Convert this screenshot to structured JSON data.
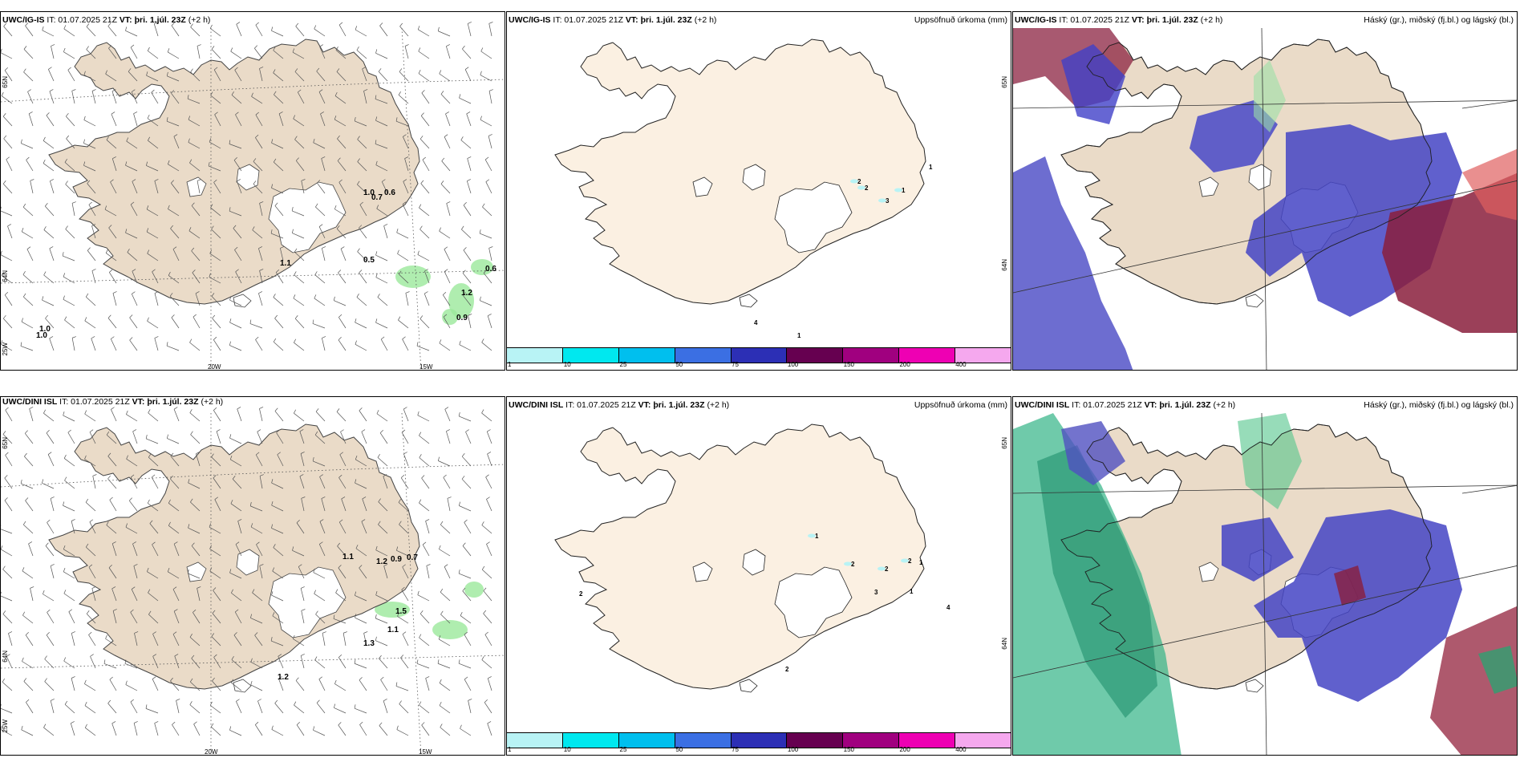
{
  "panels": [
    {
      "id": "tl",
      "header_model": "UWC/IG-IS",
      "header_it": "IT: 01.07.2025 21Z",
      "header_vt": "VT: þri. 1.júl. 23Z",
      "header_tail": "(+2 h)",
      "right_title": ""
    },
    {
      "id": "tm",
      "header_model": "UWC/IG-IS",
      "header_it": "IT: 01.07.2025 21Z",
      "header_vt": "VT: þri. 1.júl. 23Z",
      "header_tail": "(+2 h)",
      "right_title": "Uppsöfnuð úrkoma (mm)"
    },
    {
      "id": "tr",
      "header_model": "UWC/IG-IS",
      "header_it": "IT: 01.07.2025 21Z",
      "header_vt": "VT: þri. 1.júl. 23Z",
      "header_tail": "(+2 h)",
      "right_title": "Háský (gr.), miðský (fj.bl.) og lágský (bl.)"
    },
    {
      "id": "bl",
      "header_model": "UWC/DINI ISL",
      "header_it": "IT: 01.07.2025 21Z",
      "header_vt": "VT: þri. 1.júl. 23Z",
      "header_tail": "(+2 h)",
      "right_title": ""
    },
    {
      "id": "bm",
      "header_model": "UWC/DINI ISL",
      "header_it": "IT: 01.07.2025 21Z",
      "header_vt": "VT: þri. 1.júl. 23Z",
      "header_tail": "(+2 h)",
      "right_title": "Uppsöfnuð úrkoma (mm)"
    },
    {
      "id": "br",
      "header_model": "UWC/DINI ISL",
      "header_it": "IT: 01.07.2025 21Z",
      "header_vt": "VT: þri. 1.júl. 23Z",
      "header_tail": "(+2 h)",
      "right_title": "Háský (gr.), miðský (fj.bl.) og lágský (bl.)"
    }
  ],
  "legend": {
    "labels": [
      "1",
      "10",
      "25",
      "50",
      "75",
      "100",
      "150",
      "200",
      "400"
    ],
    "colors": [
      "#b8f3f5",
      "#00e8ef",
      "#00bfee",
      "#3b6fe3",
      "#2c2fb5",
      "#660050",
      "#a0007f",
      "#ee00b3",
      "#f5a8ee"
    ]
  },
  "coords": {
    "lon_20w": "20W",
    "lon_15w": "15W",
    "lat_65n": "65N",
    "lat_64n": "64N",
    "lat_25w": "25W"
  },
  "precip_labels_tl": [
    "1.0",
    "0.7",
    "0.6",
    "1.1",
    "0.5",
    "0.6",
    "1.2",
    "0.9",
    "1.0",
    "1.0"
  ],
  "precip_labels_bl": [
    "1.1",
    "1.2",
    "0.9",
    "0.7",
    "1.5",
    "1.1",
    "1.3",
    "1.2"
  ],
  "accum_labels_tm": [
    "2",
    "2",
    "1",
    "3",
    "1",
    "4",
    "1"
  ],
  "accum_labels_bm": [
    "1",
    "2",
    "2",
    "2",
    "1",
    "3",
    "1",
    "2",
    "4",
    "2"
  ]
}
